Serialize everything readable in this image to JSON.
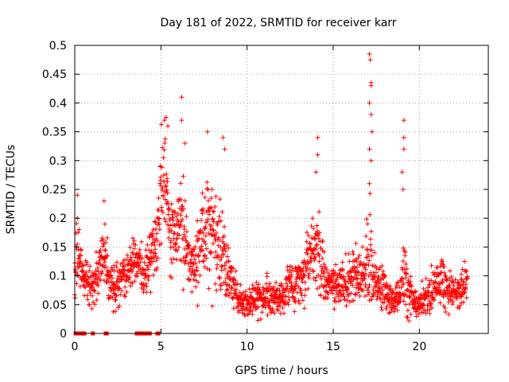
{
  "chart_data": {
    "type": "scatter",
    "title": "Day 181 of 2022, SRMTID for receiver karr",
    "xlabel": "GPS time / hours",
    "ylabel": "SRMTID / TECUs",
    "xlim": [
      0,
      24
    ],
    "ylim": [
      0,
      0.5
    ],
    "xticks": [
      0,
      5,
      10,
      15,
      20
    ],
    "xtick_labels": [
      "0",
      "5",
      "10",
      "15",
      "20"
    ],
    "yticks": [
      0,
      0.05,
      0.1,
      0.15,
      0.2,
      0.25,
      0.3,
      0.35,
      0.4,
      0.45,
      0.5
    ],
    "ytick_labels": [
      "0",
      "0.05",
      "0.1",
      "0.15",
      "0.2",
      "0.25",
      "0.3",
      "0.35",
      "0.4",
      "0.45",
      "0.5"
    ],
    "grid": true,
    "marker": "+",
    "color": "#ff0000",
    "series": [
      {
        "name": "SRMTID",
        "profile_x": [
          0.0,
          0.1,
          0.2,
          0.3,
          0.5,
          0.8,
          1.0,
          1.3,
          1.5,
          1.8,
          2.0,
          2.3,
          2.5,
          2.8,
          3.0,
          3.3,
          3.5,
          3.8,
          4.0,
          4.3,
          4.5,
          4.7,
          4.9,
          5.0,
          5.1,
          5.25,
          5.4,
          5.6,
          5.8,
          6.0,
          6.2,
          6.4,
          6.6,
          6.8,
          7.0,
          7.3,
          7.6,
          7.9,
          8.1,
          8.3,
          8.5,
          8.7,
          8.9,
          9.1,
          9.3,
          9.5,
          9.8,
          10.0,
          10.3,
          10.6,
          10.9,
          11.2,
          11.5,
          11.8,
          12.1,
          12.4,
          12.7,
          13.0,
          13.3,
          13.5,
          13.8,
          14.0,
          14.2,
          14.4,
          14.6,
          14.9,
          15.2,
          15.5,
          15.8,
          16.1,
          16.4,
          16.7,
          17.0,
          17.15,
          17.3,
          17.5,
          17.8,
          18.1,
          18.4,
          18.7,
          19.0,
          19.2,
          19.4,
          19.6,
          19.9,
          20.2,
          20.5,
          20.8,
          21.1,
          21.4,
          21.7,
          22.0,
          22.3,
          22.6,
          22.8
        ],
        "profile_center": [
          0.08,
          0.15,
          0.13,
          0.11,
          0.1,
          0.09,
          0.08,
          0.1,
          0.13,
          0.13,
          0.09,
          0.08,
          0.09,
          0.1,
          0.1,
          0.12,
          0.13,
          0.12,
          0.1,
          0.12,
          0.14,
          0.16,
          0.2,
          0.25,
          0.28,
          0.3,
          0.22,
          0.18,
          0.17,
          0.17,
          0.18,
          0.16,
          0.13,
          0.12,
          0.11,
          0.16,
          0.18,
          0.18,
          0.17,
          0.15,
          0.14,
          0.12,
          0.1,
          0.09,
          0.07,
          0.06,
          0.06,
          0.05,
          0.06,
          0.07,
          0.06,
          0.07,
          0.06,
          0.06,
          0.07,
          0.08,
          0.08,
          0.09,
          0.1,
          0.12,
          0.13,
          0.15,
          0.14,
          0.11,
          0.09,
          0.08,
          0.08,
          0.09,
          0.09,
          0.1,
          0.1,
          0.1,
          0.11,
          0.13,
          0.1,
          0.09,
          0.08,
          0.07,
          0.06,
          0.06,
          0.08,
          0.1,
          0.08,
          0.06,
          0.05,
          0.06,
          0.07,
          0.08,
          0.09,
          0.08,
          0.07,
          0.07,
          0.07,
          0.08,
          0.1
        ],
        "profile_spread": [
          0.03,
          0.06,
          0.04,
          0.03,
          0.03,
          0.03,
          0.03,
          0.03,
          0.04,
          0.05,
          0.03,
          0.03,
          0.03,
          0.03,
          0.03,
          0.03,
          0.03,
          0.03,
          0.03,
          0.04,
          0.05,
          0.06,
          0.07,
          0.09,
          0.09,
          0.08,
          0.07,
          0.05,
          0.06,
          0.06,
          0.07,
          0.06,
          0.04,
          0.04,
          0.04,
          0.06,
          0.07,
          0.08,
          0.08,
          0.06,
          0.06,
          0.05,
          0.04,
          0.03,
          0.03,
          0.02,
          0.02,
          0.02,
          0.02,
          0.03,
          0.02,
          0.03,
          0.02,
          0.02,
          0.03,
          0.03,
          0.03,
          0.03,
          0.04,
          0.05,
          0.05,
          0.07,
          0.06,
          0.04,
          0.03,
          0.03,
          0.03,
          0.03,
          0.03,
          0.04,
          0.04,
          0.04,
          0.06,
          0.1,
          0.04,
          0.03,
          0.03,
          0.03,
          0.02,
          0.02,
          0.04,
          0.07,
          0.04,
          0.02,
          0.02,
          0.02,
          0.03,
          0.03,
          0.03,
          0.03,
          0.03,
          0.02,
          0.02,
          0.03,
          0.03
        ],
        "highlights": [
          {
            "x": 0.15,
            "y": 0.24
          },
          {
            "x": 0.15,
            "y": 0.2
          },
          {
            "x": 0.25,
            "y": 0.18
          },
          {
            "x": 1.7,
            "y": 0.23
          },
          {
            "x": 1.75,
            "y": 0.19
          },
          {
            "x": 5.2,
            "y": 0.37
          },
          {
            "x": 5.3,
            "y": 0.375
          },
          {
            "x": 5.4,
            "y": 0.36
          },
          {
            "x": 6.2,
            "y": 0.41
          },
          {
            "x": 6.2,
            "y": 0.37
          },
          {
            "x": 6.4,
            "y": 0.33
          },
          {
            "x": 7.7,
            "y": 0.35
          },
          {
            "x": 8.6,
            "y": 0.34
          },
          {
            "x": 8.7,
            "y": 0.32
          },
          {
            "x": 14.1,
            "y": 0.34
          },
          {
            "x": 14.1,
            "y": 0.31
          },
          {
            "x": 14.0,
            "y": 0.28
          },
          {
            "x": 17.1,
            "y": 0.485
          },
          {
            "x": 17.15,
            "y": 0.475
          },
          {
            "x": 17.2,
            "y": 0.435
          },
          {
            "x": 17.2,
            "y": 0.43
          },
          {
            "x": 17.1,
            "y": 0.4
          },
          {
            "x": 17.2,
            "y": 0.38
          },
          {
            "x": 17.25,
            "y": 0.35
          },
          {
            "x": 17.1,
            "y": 0.32
          },
          {
            "x": 17.2,
            "y": 0.3
          },
          {
            "x": 17.1,
            "y": 0.26
          },
          {
            "x": 19.1,
            "y": 0.37
          },
          {
            "x": 19.1,
            "y": 0.34
          },
          {
            "x": 19.1,
            "y": 0.32
          },
          {
            "x": 19.0,
            "y": 0.28
          },
          {
            "x": 19.05,
            "y": 0.25
          }
        ],
        "zero_points_x": [
          0.05,
          0.1,
          0.2,
          0.3,
          0.45,
          0.55,
          1.05,
          1.8,
          1.85,
          3.6,
          3.7,
          3.8,
          3.95,
          4.05,
          4.25,
          4.35,
          4.8,
          4.85
        ],
        "zero_marker": "square"
      }
    ]
  }
}
